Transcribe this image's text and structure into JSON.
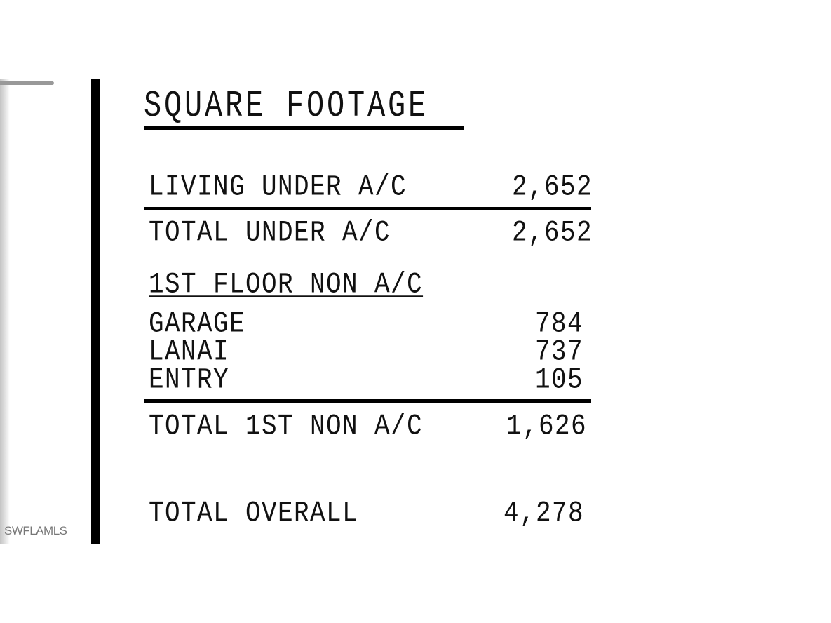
{
  "watermark": "SWFLAMLS",
  "title": "SQUARE FOOTAGE",
  "rows": {
    "living": {
      "label": "LIVING UNDER A/C",
      "value": "2,652"
    },
    "total_under": {
      "label": "TOTAL UNDER A/C",
      "value": "2,652"
    },
    "section_heading": "1ST FLOOR NON A/C",
    "garage": {
      "label": "GARAGE",
      "value": "784"
    },
    "lanai": {
      "label": "LANAI",
      "value": "737"
    },
    "entry": {
      "label": "ENTRY",
      "value": "105"
    },
    "total_first_non_ac": {
      "label": "TOTAL 1ST NON A/C",
      "value": "1,626"
    },
    "total_overall": {
      "label": "TOTAL OVERALL",
      "value": "4,278"
    }
  }
}
